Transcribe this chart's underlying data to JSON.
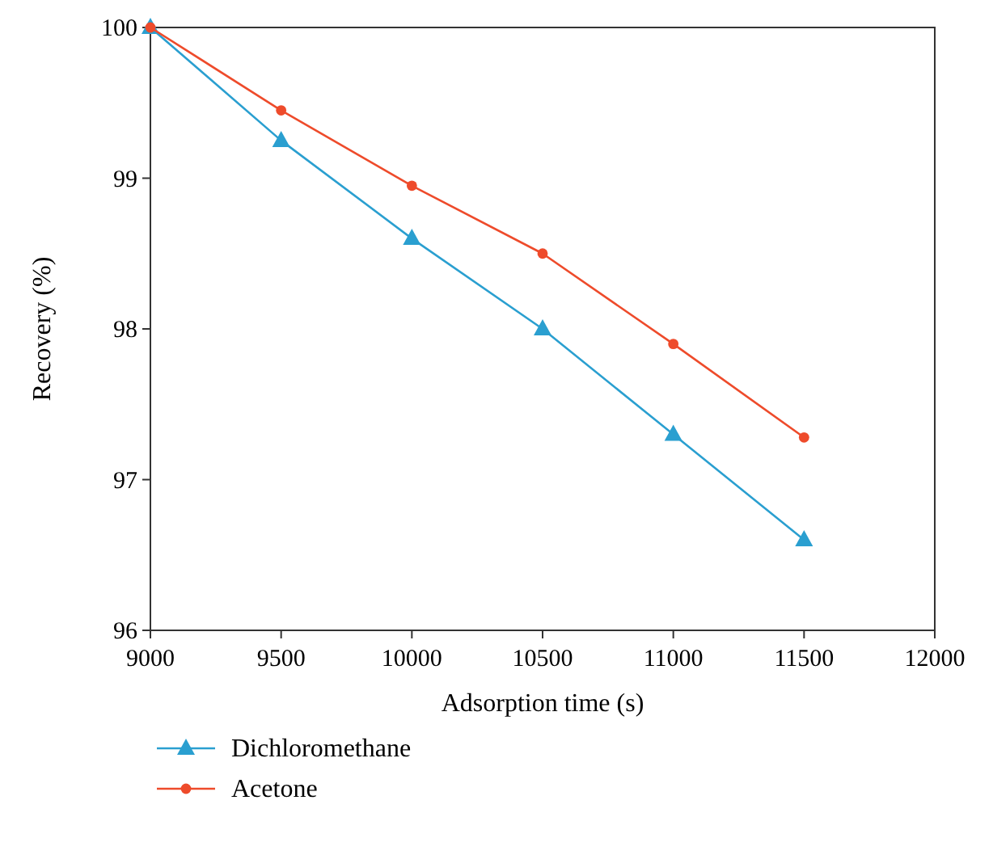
{
  "chart_data": {
    "type": "line",
    "xlabel": "Adsorption time (s)",
    "ylabel": "Recovery (%)",
    "x": [
      9000,
      9500,
      10000,
      10500,
      11000,
      11500
    ],
    "series": [
      {
        "name": "Dichloromethane",
        "color": "#2a9fd0",
        "marker": "triangle",
        "values": [
          100,
          99.25,
          98.6,
          98.0,
          97.3,
          96.6
        ]
      },
      {
        "name": "Acetone",
        "color": "#ee4b2b",
        "marker": "circle",
        "values": [
          100,
          99.45,
          98.95,
          98.5,
          97.9,
          97.28
        ]
      }
    ],
    "xlim": [
      9000,
      12000
    ],
    "xticks": [
      9000,
      9500,
      10000,
      10500,
      11000,
      11500,
      12000
    ],
    "ylim": [
      96,
      100
    ],
    "yticks": [
      96,
      97,
      98,
      99,
      100
    ],
    "grid": false,
    "legend": "bottom left",
    "line_style": "solid"
  }
}
